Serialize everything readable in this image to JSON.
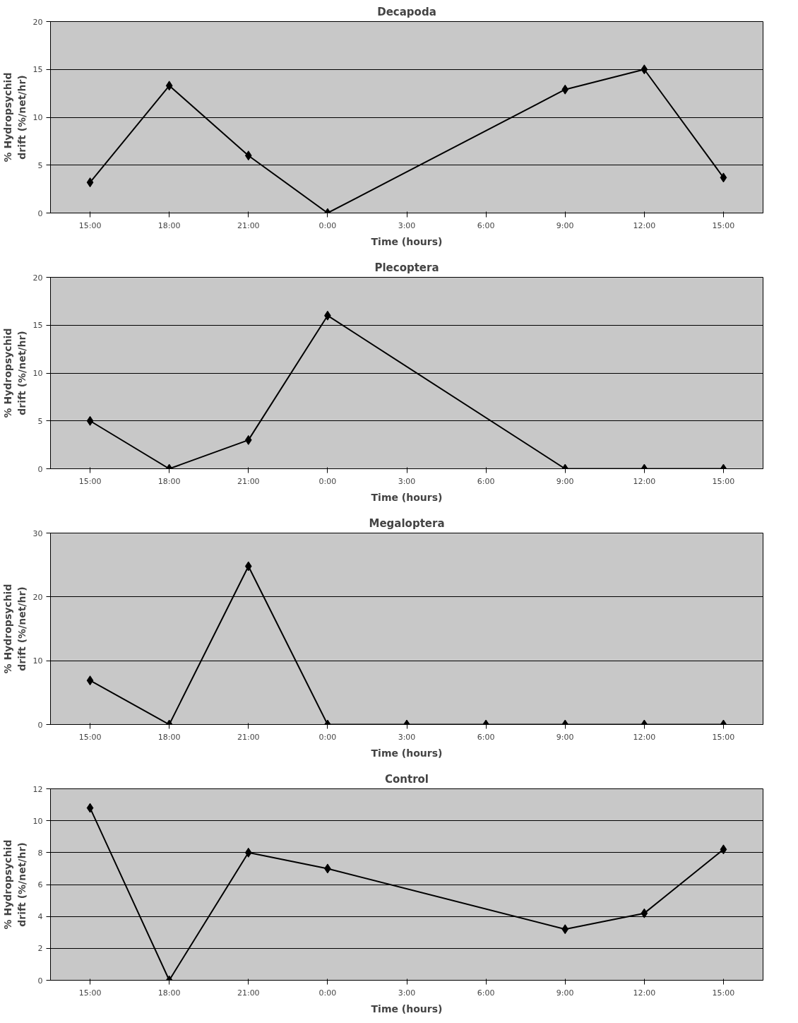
{
  "chart_data": [
    {
      "type": "line",
      "title": "Decapoda",
      "xlabel": "Time (hours)",
      "ylabel": "% Hydropsychid\ndrift (%/net/hr)",
      "categories": [
        "15:00",
        "18:00",
        "21:00",
        "0:00",
        "3:00",
        "6:00",
        "9:00",
        "12:00",
        "15:00"
      ],
      "series": [
        {
          "color": "#000000",
          "values": [
            3.2,
            13.3,
            6.0,
            0,
            null,
            null,
            12.9,
            15.0,
            3.7
          ]
        }
      ],
      "ylim": [
        0,
        20
      ],
      "yticks": [
        0,
        5,
        10,
        15,
        20
      ],
      "grid": "y",
      "marker": "diamond",
      "line_style": "solid"
    },
    {
      "type": "line",
      "title": "Plecoptera",
      "xlabel": "Time (hours)",
      "ylabel": "% Hydropsychid\ndrift (%/net/hr)",
      "categories": [
        "15:00",
        "18:00",
        "21:00",
        "0:00",
        "3:00",
        "6:00",
        "9:00",
        "12:00",
        "15:00"
      ],
      "series": [
        {
          "color": "#000000",
          "values": [
            5.0,
            0,
            3.0,
            16.0,
            null,
            null,
            0,
            0,
            0
          ]
        }
      ],
      "ylim": [
        0,
        20
      ],
      "yticks": [
        0,
        5,
        10,
        15,
        20
      ],
      "grid": "y",
      "marker": "diamond",
      "line_style": "solid"
    },
    {
      "type": "line",
      "title": "Megaloptera",
      "xlabel": "Time (hours)",
      "ylabel": "% Hydropsychid\ndrift (%/net/hr)",
      "categories": [
        "15:00",
        "18:00",
        "21:00",
        "0:00",
        "3:00",
        "6:00",
        "9:00",
        "12:00",
        "15:00"
      ],
      "series": [
        {
          "color": "#000000",
          "values": [
            6.9,
            0,
            24.8,
            0,
            0,
            0,
            0,
            0,
            0
          ]
        }
      ],
      "ylim": [
        0,
        30
      ],
      "yticks": [
        0,
        10,
        20,
        30
      ],
      "grid": "y",
      "marker": "diamond",
      "line_style": "solid"
    },
    {
      "type": "line",
      "title": "Control",
      "xlabel": "Time (hours)",
      "ylabel": "% Hydropsychid\ndrift (%/net/hr)",
      "categories": [
        "15:00",
        "18:00",
        "21:00",
        "0:00",
        "3:00",
        "6:00",
        "9:00",
        "12:00",
        "15:00"
      ],
      "series": [
        {
          "color": "#000000",
          "values": [
            10.8,
            0,
            8.0,
            7.0,
            null,
            null,
            3.2,
            4.2,
            8.2
          ]
        }
      ],
      "ylim": [
        0,
        12
      ],
      "yticks": [
        0,
        2,
        4,
        6,
        8,
        10,
        12
      ],
      "grid": "y",
      "marker": "diamond",
      "line_style": "solid"
    }
  ]
}
